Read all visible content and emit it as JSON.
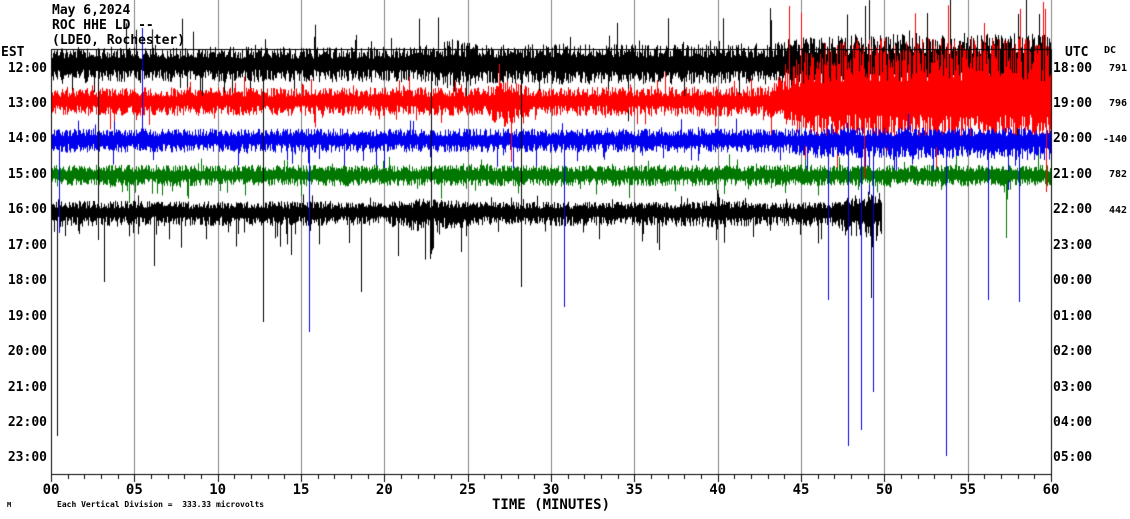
{
  "header": {
    "date": "May 6,2024",
    "station": "ROC HHE LD --",
    "network": "(LDEO, Rochester)"
  },
  "left_axis": {
    "label": "EST",
    "ticks": [
      "12:00",
      "13:00",
      "14:00",
      "15:00",
      "16:00",
      "17:00",
      "18:00",
      "19:00",
      "20:00",
      "21:00",
      "22:00",
      "23:00"
    ]
  },
  "right_axis": {
    "label": "UTC",
    "ticks": [
      "18:00",
      "19:00",
      "20:00",
      "21:00",
      "22:00",
      "23:00",
      "00:00",
      "01:00",
      "02:00",
      "03:00",
      "04:00",
      "05:00"
    ]
  },
  "dc_column": {
    "label": "DC",
    "values": [
      "791",
      "796",
      "-140",
      "782",
      "442"
    ]
  },
  "x_axis": {
    "label": "TIME (MINUTES)",
    "ticks": [
      "00",
      "05",
      "10",
      "15",
      "20",
      "25",
      "30",
      "35",
      "40",
      "45",
      "50",
      "55",
      "60"
    ]
  },
  "footer": {
    "mark": "M",
    "note": "Each Vertical Division =  333.33 microvolts"
  },
  "chart_data": {
    "type": "line",
    "title": "Helicorder seismogram ROC HHE LD (LDEO, Rochester), May 6, 2024",
    "xlabel": "TIME (MINUTES)",
    "x_range": [
      0,
      60
    ],
    "x_major_step_min": 5,
    "x_minor_step_min": 1,
    "grid": {
      "color": "#808080",
      "every_min": 5,
      "full_height": true
    },
    "scale_note": "Each Vertical Division = 333.33 microvolts",
    "rows_total": 12,
    "minutes_per_row": 60,
    "layout": {
      "plot_left": 51,
      "plot_top": 49,
      "plot_right": 1051,
      "plot_bottom": 474,
      "row_label_first_y": 68,
      "row_spacing": 35.45,
      "major_tick_len": 8,
      "minor_tick_len": 5
    },
    "colors": {
      "black": "#000000",
      "red": "#ff0000",
      "blue": "#0000ee",
      "green": "#007700"
    },
    "traces": [
      {
        "est": "12:00",
        "utc": "18:00",
        "dc": 791,
        "color": "#000000",
        "center_y": 64,
        "start_min": 0,
        "end_min": 60,
        "seed": 11,
        "envelope": [
          [
            0,
            15,
            16
          ],
          [
            22,
            15,
            16
          ],
          [
            24,
            22,
            22
          ],
          [
            26,
            17,
            18
          ],
          [
            43,
            18,
            18
          ],
          [
            45,
            24,
            22
          ],
          [
            50,
            27,
            24
          ],
          [
            60,
            27,
            24
          ]
        ],
        "tail_up": [
          0.05,
          1.8,
          3.2
        ],
        "tail_dn": [
          0.03,
          1.5,
          3.5
        ]
      },
      {
        "est": "13:00",
        "utc": "19:00",
        "dc": 796,
        "color": "#ff0000",
        "center_y": 101,
        "start_min": 0,
        "end_min": 60,
        "seed": 22,
        "envelope": [
          [
            0,
            12,
            13
          ],
          [
            26,
            12,
            13
          ],
          [
            27,
            20,
            24
          ],
          [
            29,
            12,
            13
          ],
          [
            43,
            13,
            14
          ],
          [
            45,
            42,
            30
          ],
          [
            47,
            55,
            38
          ],
          [
            60,
            55,
            38
          ]
        ],
        "tail_up": [
          0.06,
          1.4,
          2.0
        ],
        "tail_dn": [
          0.04,
          1.5,
          2.5
        ]
      },
      {
        "est": "14:00",
        "utc": "20:00",
        "dc": -140,
        "color": "#0000ee",
        "center_y": 140,
        "start_min": 0,
        "end_min": 60,
        "seed": 33,
        "envelope": [
          [
            0,
            10,
            11
          ],
          [
            44,
            10,
            11
          ],
          [
            46,
            11,
            16
          ],
          [
            60,
            11,
            18
          ]
        ],
        "tail_up": [
          0.03,
          1.5,
          2.5
        ],
        "tail_dn": [
          0.05,
          1.5,
          3.0
        ]
      },
      {
        "est": "15:00",
        "utc": "21:00",
        "dc": 782,
        "color": "#007700",
        "center_y": 175,
        "start_min": 0,
        "end_min": 60,
        "seed": 44,
        "envelope": [
          [
            0,
            9,
            10
          ],
          [
            60,
            9,
            10
          ]
        ],
        "tail_up": [
          0.04,
          1.5,
          2.2
        ],
        "tail_dn": [
          0.05,
          1.5,
          2.5
        ]
      },
      {
        "est": "16:00",
        "utc": "22:00",
        "dc": 442,
        "color": "#000000",
        "center_y": 212,
        "start_min": 0,
        "end_min": 49.8,
        "seed": 55,
        "envelope": [
          [
            0,
            10,
            13
          ],
          [
            20,
            9,
            12
          ],
          [
            22,
            12,
            18
          ],
          [
            26,
            9,
            12
          ],
          [
            39,
            9,
            13
          ],
          [
            40,
            12,
            16
          ],
          [
            42,
            8,
            12
          ],
          [
            47,
            9,
            13
          ],
          [
            48,
            15,
            22
          ],
          [
            49.8,
            17,
            26
          ]
        ],
        "tail_up": [
          0.04,
          1.5,
          2.0
        ],
        "tail_dn": [
          0.07,
          1.5,
          3.2
        ]
      }
    ],
    "spikes": [
      {
        "t": 4,
        "m": 0.35,
        "to_y": 436
      },
      {
        "t": 2,
        "m": 0.5,
        "to_y": 233
      },
      {
        "t": 0,
        "m": 2.8,
        "to_y": 240
      },
      {
        "t": 4,
        "m": 3.2,
        "to_y": 282
      },
      {
        "t": 2,
        "m": 5.45,
        "to_y": 28
      },
      {
        "t": 4,
        "m": 6.2,
        "to_y": 266
      },
      {
        "t": 0,
        "m": 12.7,
        "to_y": 272
      },
      {
        "t": 4,
        "m": 12.7,
        "to_y": 322
      },
      {
        "t": 2,
        "m": 15.5,
        "to_y": 332
      },
      {
        "t": 4,
        "m": 18.6,
        "to_y": 292
      },
      {
        "t": 0,
        "m": 22.8,
        "to_y": 254
      },
      {
        "t": 4,
        "m": 24.6,
        "to_y": 252
      },
      {
        "t": 1,
        "m": 27.6,
        "to_y": 162
      },
      {
        "t": 0,
        "m": 28.2,
        "to_y": 287
      },
      {
        "t": 2,
        "m": 30.8,
        "to_y": 307
      },
      {
        "t": 4,
        "m": 36.5,
        "to_y": 250
      },
      {
        "t": 1,
        "m": 44.3,
        "to_y": 6
      },
      {
        "t": 2,
        "m": 46.6,
        "to_y": 300
      },
      {
        "t": 2,
        "m": 47.8,
        "to_y": 446
      },
      {
        "t": 1,
        "m": 48.8,
        "to_y": 178
      },
      {
        "t": 2,
        "m": 48.6,
        "to_y": 430
      },
      {
        "t": 2,
        "m": 49.3,
        "to_y": 392
      },
      {
        "t": 4,
        "m": 49.2,
        "to_y": 298
      },
      {
        "t": 2,
        "m": 53.7,
        "to_y": 456
      },
      {
        "t": 2,
        "m": 56.2,
        "to_y": 300
      },
      {
        "t": 3,
        "m": 57.3,
        "to_y": 238
      },
      {
        "t": 2,
        "m": 58.1,
        "to_y": 302
      },
      {
        "t": 1,
        "m": 59.5,
        "to_y": 2
      },
      {
        "t": 1,
        "m": 59.7,
        "to_y": 192
      }
    ]
  }
}
